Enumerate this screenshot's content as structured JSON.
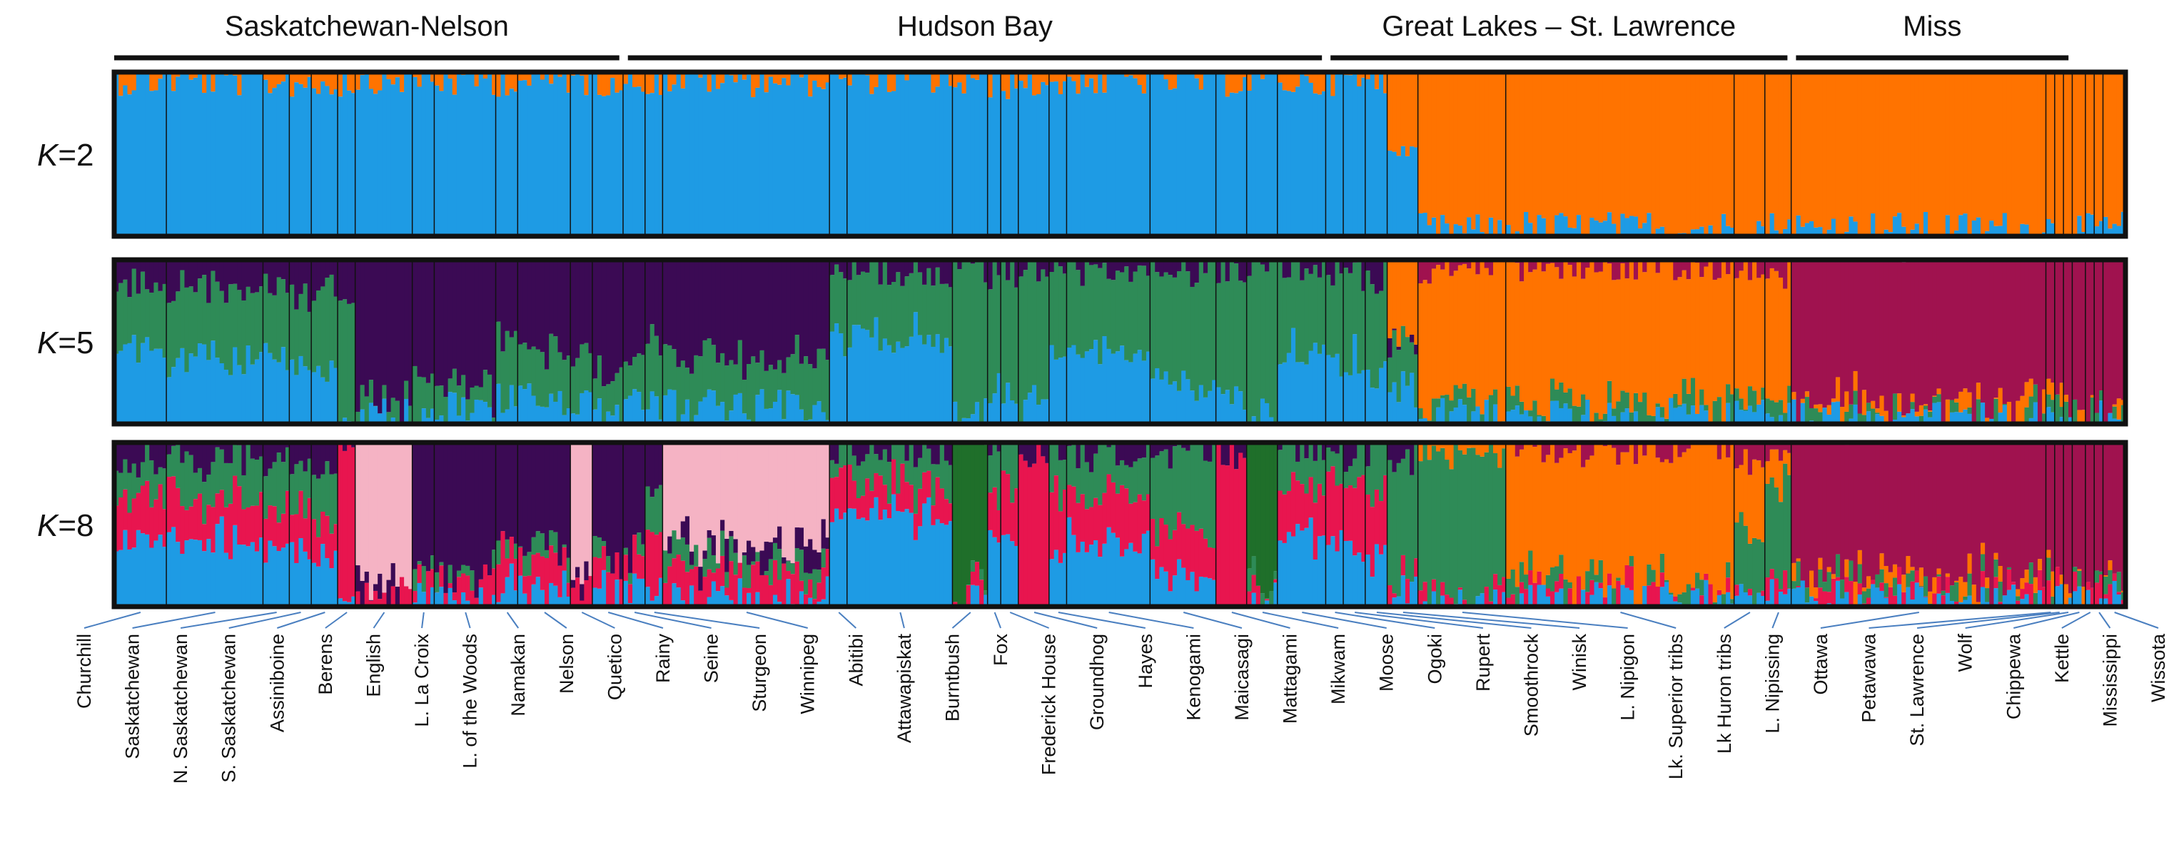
{
  "chart_data": {
    "type": "stacked-bar-structure",
    "title": "",
    "regions": [
      {
        "name": "Saskatchewan-Nelson",
        "start": 0,
        "end": 12
      },
      {
        "name": "Hudson Bay",
        "start": 13,
        "end": 27
      },
      {
        "name": "Great Lakes – St. Lawrence",
        "start": 28,
        "end": 35
      },
      {
        "name": "Miss",
        "start": 36,
        "end": 39
      }
    ],
    "populations": [
      {
        "name": "Churchill",
        "n": 12
      },
      {
        "name": "Saskatchewan",
        "n": 22
      },
      {
        "name": "N. Saskatchewan",
        "n": 6
      },
      {
        "name": "S. Saskatchewan",
        "n": 5
      },
      {
        "name": "Assiniboine",
        "n": 6
      },
      {
        "name": "Berens",
        "n": 4
      },
      {
        "name": "English",
        "n": 13
      },
      {
        "name": "L. La Croix",
        "n": 5
      },
      {
        "name": "L. of the Woods",
        "n": 14
      },
      {
        "name": "Namakan",
        "n": 5
      },
      {
        "name": "Nelson",
        "n": 12
      },
      {
        "name": "Quetico",
        "n": 5
      },
      {
        "name": "Rainy",
        "n": 7
      },
      {
        "name": "Seine",
        "n": 5
      },
      {
        "name": "Sturgeon",
        "n": 4
      },
      {
        "name": "Winnipeg",
        "n": 38
      },
      {
        "name": "Abitibi",
        "n": 4
      },
      {
        "name": "Attawapiskat",
        "n": 24
      },
      {
        "name": "Burntbush",
        "n": 8
      },
      {
        "name": "Fox",
        "n": 3
      },
      {
        "name": "Frederick House",
        "n": 4
      },
      {
        "name": "Groundhog",
        "n": 7
      },
      {
        "name": "Hayes",
        "n": 4
      },
      {
        "name": "Kenogami",
        "n": 19
      },
      {
        "name": "Maicasagi",
        "n": 15
      },
      {
        "name": "Mattagami",
        "n": 7
      },
      {
        "name": "Mikwam",
        "n": 7
      },
      {
        "name": "Moose",
        "n": 11
      },
      {
        "name": "Ogoki",
        "n": 4
      },
      {
        "name": "Rupert",
        "n": 5
      },
      {
        "name": "Smoothrock",
        "n": 5
      },
      {
        "name": "Winisk",
        "n": 7
      },
      {
        "name": "L. Nipigon",
        "n": 20
      },
      {
        "name": "Lk. Superior tribs",
        "n": 52
      },
      {
        "name": "Lk Huron tribs",
        "n": 7
      },
      {
        "name": "L. Nipissing",
        "n": 6
      },
      {
        "name": "Ottawa",
        "n": 58
      },
      {
        "name": "Petawawa",
        "n": 2
      },
      {
        "name": "St. Lawrence",
        "n": 2
      },
      {
        "name": "Wolf",
        "n": 2
      },
      {
        "name": "Chippewa",
        "n": 3
      },
      {
        "name": "Kettle",
        "n": 2
      },
      {
        "name": "Mississippi",
        "n": 2
      },
      {
        "name": "Wissota",
        "n": 5
      }
    ],
    "panels": [
      {
        "label_italic": "K",
        "label_rest": "=2",
        "K": 2,
        "cluster_colors": [
          "#1e9be4",
          "#ff7300"
        ],
        "mean_membership": [
          [
            0.97,
            0.03
          ],
          [
            0.97,
            0.03
          ],
          [
            0.96,
            0.04
          ],
          [
            0.96,
            0.04
          ],
          [
            0.95,
            0.05
          ],
          [
            0.97,
            0.03
          ],
          [
            0.98,
            0.02
          ],
          [
            0.97,
            0.03
          ],
          [
            0.97,
            0.03
          ],
          [
            0.97,
            0.03
          ],
          [
            0.97,
            0.03
          ],
          [
            0.97,
            0.03
          ],
          [
            0.97,
            0.03
          ],
          [
            0.97,
            0.03
          ],
          [
            0.97,
            0.03
          ],
          [
            0.98,
            0.02
          ],
          [
            0.97,
            0.03
          ],
          [
            0.98,
            0.02
          ],
          [
            0.95,
            0.05
          ],
          [
            0.95,
            0.05
          ],
          [
            0.95,
            0.05
          ],
          [
            0.95,
            0.05
          ],
          [
            0.95,
            0.05
          ],
          [
            0.97,
            0.03
          ],
          [
            0.97,
            0.03
          ],
          [
            0.97,
            0.03
          ],
          [
            0.97,
            0.03
          ],
          [
            0.97,
            0.03
          ],
          [
            0.96,
            0.04
          ],
          [
            0.96,
            0.04
          ],
          [
            0.95,
            0.05
          ],
          [
            0.55,
            0.45
          ],
          [
            0.02,
            0.98
          ],
          [
            0.03,
            0.97
          ],
          [
            0.03,
            0.97
          ],
          [
            0.03,
            0.97
          ],
          [
            0.03,
            0.97
          ],
          [
            0.03,
            0.97
          ],
          [
            0.03,
            0.97
          ],
          [
            0.03,
            0.97
          ],
          [
            0.03,
            0.97
          ],
          [
            0.03,
            0.97
          ],
          [
            0.03,
            0.97
          ],
          [
            0.03,
            0.97
          ]
        ]
      },
      {
        "label_italic": "K",
        "label_rest": "=5",
        "K": 5,
        "cluster_colors": [
          "#1e9be4",
          "#2e8b57",
          "#3b0a54",
          "#ff7300",
          "#a0124f"
        ],
        "mean_membership": [
          [
            0.45,
            0.4,
            0.15,
            0,
            0
          ],
          [
            0.4,
            0.45,
            0.15,
            0,
            0
          ],
          [
            0.4,
            0.45,
            0.15,
            0,
            0
          ],
          [
            0.4,
            0.4,
            0.2,
            0,
            0
          ],
          [
            0.3,
            0.5,
            0.2,
            0,
            0
          ],
          [
            0.1,
            0.7,
            0.2,
            0,
            0
          ],
          [
            0.05,
            0.05,
            0.9,
            0,
            0
          ],
          [
            0.1,
            0.2,
            0.7,
            0,
            0
          ],
          [
            0.1,
            0.1,
            0.8,
            0,
            0
          ],
          [
            0.15,
            0.35,
            0.5,
            0,
            0
          ],
          [
            0.15,
            0.3,
            0.55,
            0,
            0
          ],
          [
            0.15,
            0.3,
            0.55,
            0,
            0
          ],
          [
            0.1,
            0.25,
            0.65,
            0,
            0
          ],
          [
            0.1,
            0.25,
            0.65,
            0,
            0
          ],
          [
            0.1,
            0.4,
            0.5,
            0,
            0
          ],
          [
            0.1,
            0.3,
            0.6,
            0,
            0
          ],
          [
            0.55,
            0.4,
            0.05,
            0,
            0
          ],
          [
            0.55,
            0.4,
            0.05,
            0,
            0
          ],
          [
            0.05,
            0.92,
            0.03,
            0,
            0
          ],
          [
            0.2,
            0.75,
            0.05,
            0,
            0
          ],
          [
            0.2,
            0.75,
            0.05,
            0,
            0
          ],
          [
            0.1,
            0.85,
            0.05,
            0,
            0
          ],
          [
            0.4,
            0.55,
            0.05,
            0,
            0
          ],
          [
            0.45,
            0.5,
            0.05,
            0,
            0
          ],
          [
            0.25,
            0.7,
            0.05,
            0,
            0
          ],
          [
            0.15,
            0.8,
            0.05,
            0,
            0
          ],
          [
            0.05,
            0.92,
            0.03,
            0,
            0
          ],
          [
            0.45,
            0.5,
            0.05,
            0,
            0
          ],
          [
            0.4,
            0.55,
            0.05,
            0,
            0
          ],
          [
            0.4,
            0.55,
            0.05,
            0,
            0
          ],
          [
            0.3,
            0.6,
            0.1,
            0,
            0
          ],
          [
            0.2,
            0.3,
            0.05,
            0.45,
            0
          ],
          [
            0.03,
            0.07,
            0,
            0.88,
            0.02
          ],
          [
            0.03,
            0.07,
            0,
            0.88,
            0.02
          ],
          [
            0.03,
            0.07,
            0,
            0.85,
            0.05
          ],
          [
            0.03,
            0.07,
            0,
            0.8,
            0.1
          ],
          [
            0.02,
            0.05,
            0,
            0.05,
            0.88
          ],
          [
            0.02,
            0.05,
            0,
            0.05,
            0.88
          ],
          [
            0.02,
            0.05,
            0,
            0.05,
            0.88
          ],
          [
            0.02,
            0.05,
            0,
            0.05,
            0.88
          ],
          [
            0.02,
            0.05,
            0,
            0.05,
            0.88
          ],
          [
            0.02,
            0.05,
            0,
            0.05,
            0.88
          ],
          [
            0.02,
            0.05,
            0,
            0.05,
            0.88
          ],
          [
            0.02,
            0.05,
            0,
            0.05,
            0.88
          ]
        ]
      },
      {
        "label_italic": "K",
        "label_rest": "=8",
        "K": 8,
        "cluster_colors": [
          "#1e9be4",
          "#e8154f",
          "#2e8b57",
          "#3b0a54",
          "#f5b3c4",
          "#ff7300",
          "#a0124f",
          "#1f6f2a"
        ],
        "mean_membership": [
          [
            0.4,
            0.3,
            0.2,
            0.1,
            0,
            0,
            0,
            0
          ],
          [
            0.4,
            0.25,
            0.25,
            0.1,
            0,
            0,
            0,
            0
          ],
          [
            0.35,
            0.25,
            0.3,
            0.1,
            0,
            0,
            0,
            0
          ],
          [
            0.35,
            0.25,
            0.25,
            0.15,
            0,
            0,
            0,
            0
          ],
          [
            0.25,
            0.25,
            0.3,
            0.2,
            0,
            0,
            0,
            0
          ],
          [
            0.02,
            0.95,
            0,
            0.03,
            0,
            0,
            0,
            0
          ],
          [
            0,
            0.05,
            0,
            0.05,
            0.9,
            0,
            0,
            0
          ],
          [
            0.05,
            0.1,
            0.05,
            0.8,
            0,
            0,
            0,
            0
          ],
          [
            0.05,
            0.1,
            0.05,
            0.8,
            0,
            0,
            0,
            0
          ],
          [
            0.1,
            0.25,
            0.1,
            0.55,
            0,
            0,
            0,
            0
          ],
          [
            0.1,
            0.2,
            0.1,
            0.6,
            0,
            0,
            0,
            0
          ],
          [
            0,
            0.1,
            0,
            0.05,
            0.85,
            0,
            0,
            0
          ],
          [
            0.1,
            0.2,
            0.05,
            0.65,
            0,
            0,
            0,
            0
          ],
          [
            0.1,
            0.2,
            0.05,
            0.65,
            0,
            0,
            0,
            0
          ],
          [
            0.1,
            0.4,
            0.25,
            0.25,
            0,
            0,
            0,
            0
          ],
          [
            0.05,
            0.15,
            0.1,
            0.1,
            0.6,
            0,
            0,
            0
          ],
          [
            0.55,
            0.25,
            0.15,
            0.05,
            0,
            0,
            0,
            0
          ],
          [
            0.55,
            0.2,
            0.2,
            0.05,
            0,
            0,
            0,
            0
          ],
          [
            0.05,
            0.05,
            0.05,
            0,
            0,
            0,
            0,
            0.85
          ],
          [
            0.4,
            0.3,
            0.25,
            0.05,
            0,
            0,
            0,
            0
          ],
          [
            0.4,
            0.3,
            0.25,
            0.05,
            0,
            0,
            0,
            0
          ],
          [
            0,
            0.95,
            0,
            0.05,
            0,
            0,
            0,
            0
          ],
          [
            0.35,
            0.35,
            0.25,
            0.05,
            0,
            0,
            0,
            0
          ],
          [
            0.4,
            0.3,
            0.25,
            0.05,
            0,
            0,
            0,
            0
          ],
          [
            0.2,
            0.25,
            0.5,
            0.05,
            0,
            0,
            0,
            0
          ],
          [
            0,
            0.95,
            0,
            0.05,
            0,
            0,
            0,
            0
          ],
          [
            0.05,
            0.05,
            0.05,
            0,
            0,
            0,
            0,
            0.85
          ],
          [
            0.4,
            0.35,
            0.2,
            0.05,
            0,
            0,
            0,
            0
          ],
          [
            0.35,
            0.4,
            0.2,
            0.05,
            0,
            0,
            0,
            0
          ],
          [
            0.35,
            0.4,
            0.2,
            0.05,
            0,
            0,
            0,
            0
          ],
          [
            0.3,
            0.35,
            0.3,
            0.05,
            0,
            0,
            0,
            0
          ],
          [
            0.1,
            0.1,
            0.7,
            0.1,
            0,
            0,
            0,
            0
          ],
          [
            0.03,
            0.02,
            0.9,
            0,
            0,
            0.05,
            0,
            0
          ],
          [
            0.03,
            0.05,
            0.05,
            0,
            0,
            0.85,
            0.02,
            0
          ],
          [
            0.03,
            0.05,
            0.4,
            0,
            0,
            0.4,
            0.12,
            0
          ],
          [
            0.03,
            0.05,
            0.6,
            0,
            0,
            0.2,
            0.12,
            0
          ],
          [
            0.03,
            0.05,
            0.05,
            0,
            0,
            0.05,
            0.82,
            0
          ],
          [
            0.03,
            0.05,
            0.05,
            0,
            0,
            0.05,
            0.82,
            0
          ],
          [
            0.03,
            0.05,
            0.05,
            0,
            0,
            0.05,
            0.82,
            0
          ],
          [
            0.03,
            0.05,
            0.05,
            0,
            0,
            0.05,
            0.82,
            0
          ],
          [
            0.03,
            0.05,
            0.05,
            0,
            0,
            0.05,
            0.82,
            0
          ],
          [
            0.03,
            0.05,
            0.05,
            0,
            0,
            0.05,
            0.82,
            0
          ],
          [
            0.03,
            0.05,
            0.05,
            0,
            0,
            0.05,
            0.82,
            0
          ],
          [
            0.03,
            0.05,
            0.05,
            0,
            0,
            0.05,
            0.82,
            0
          ]
        ]
      }
    ]
  }
}
